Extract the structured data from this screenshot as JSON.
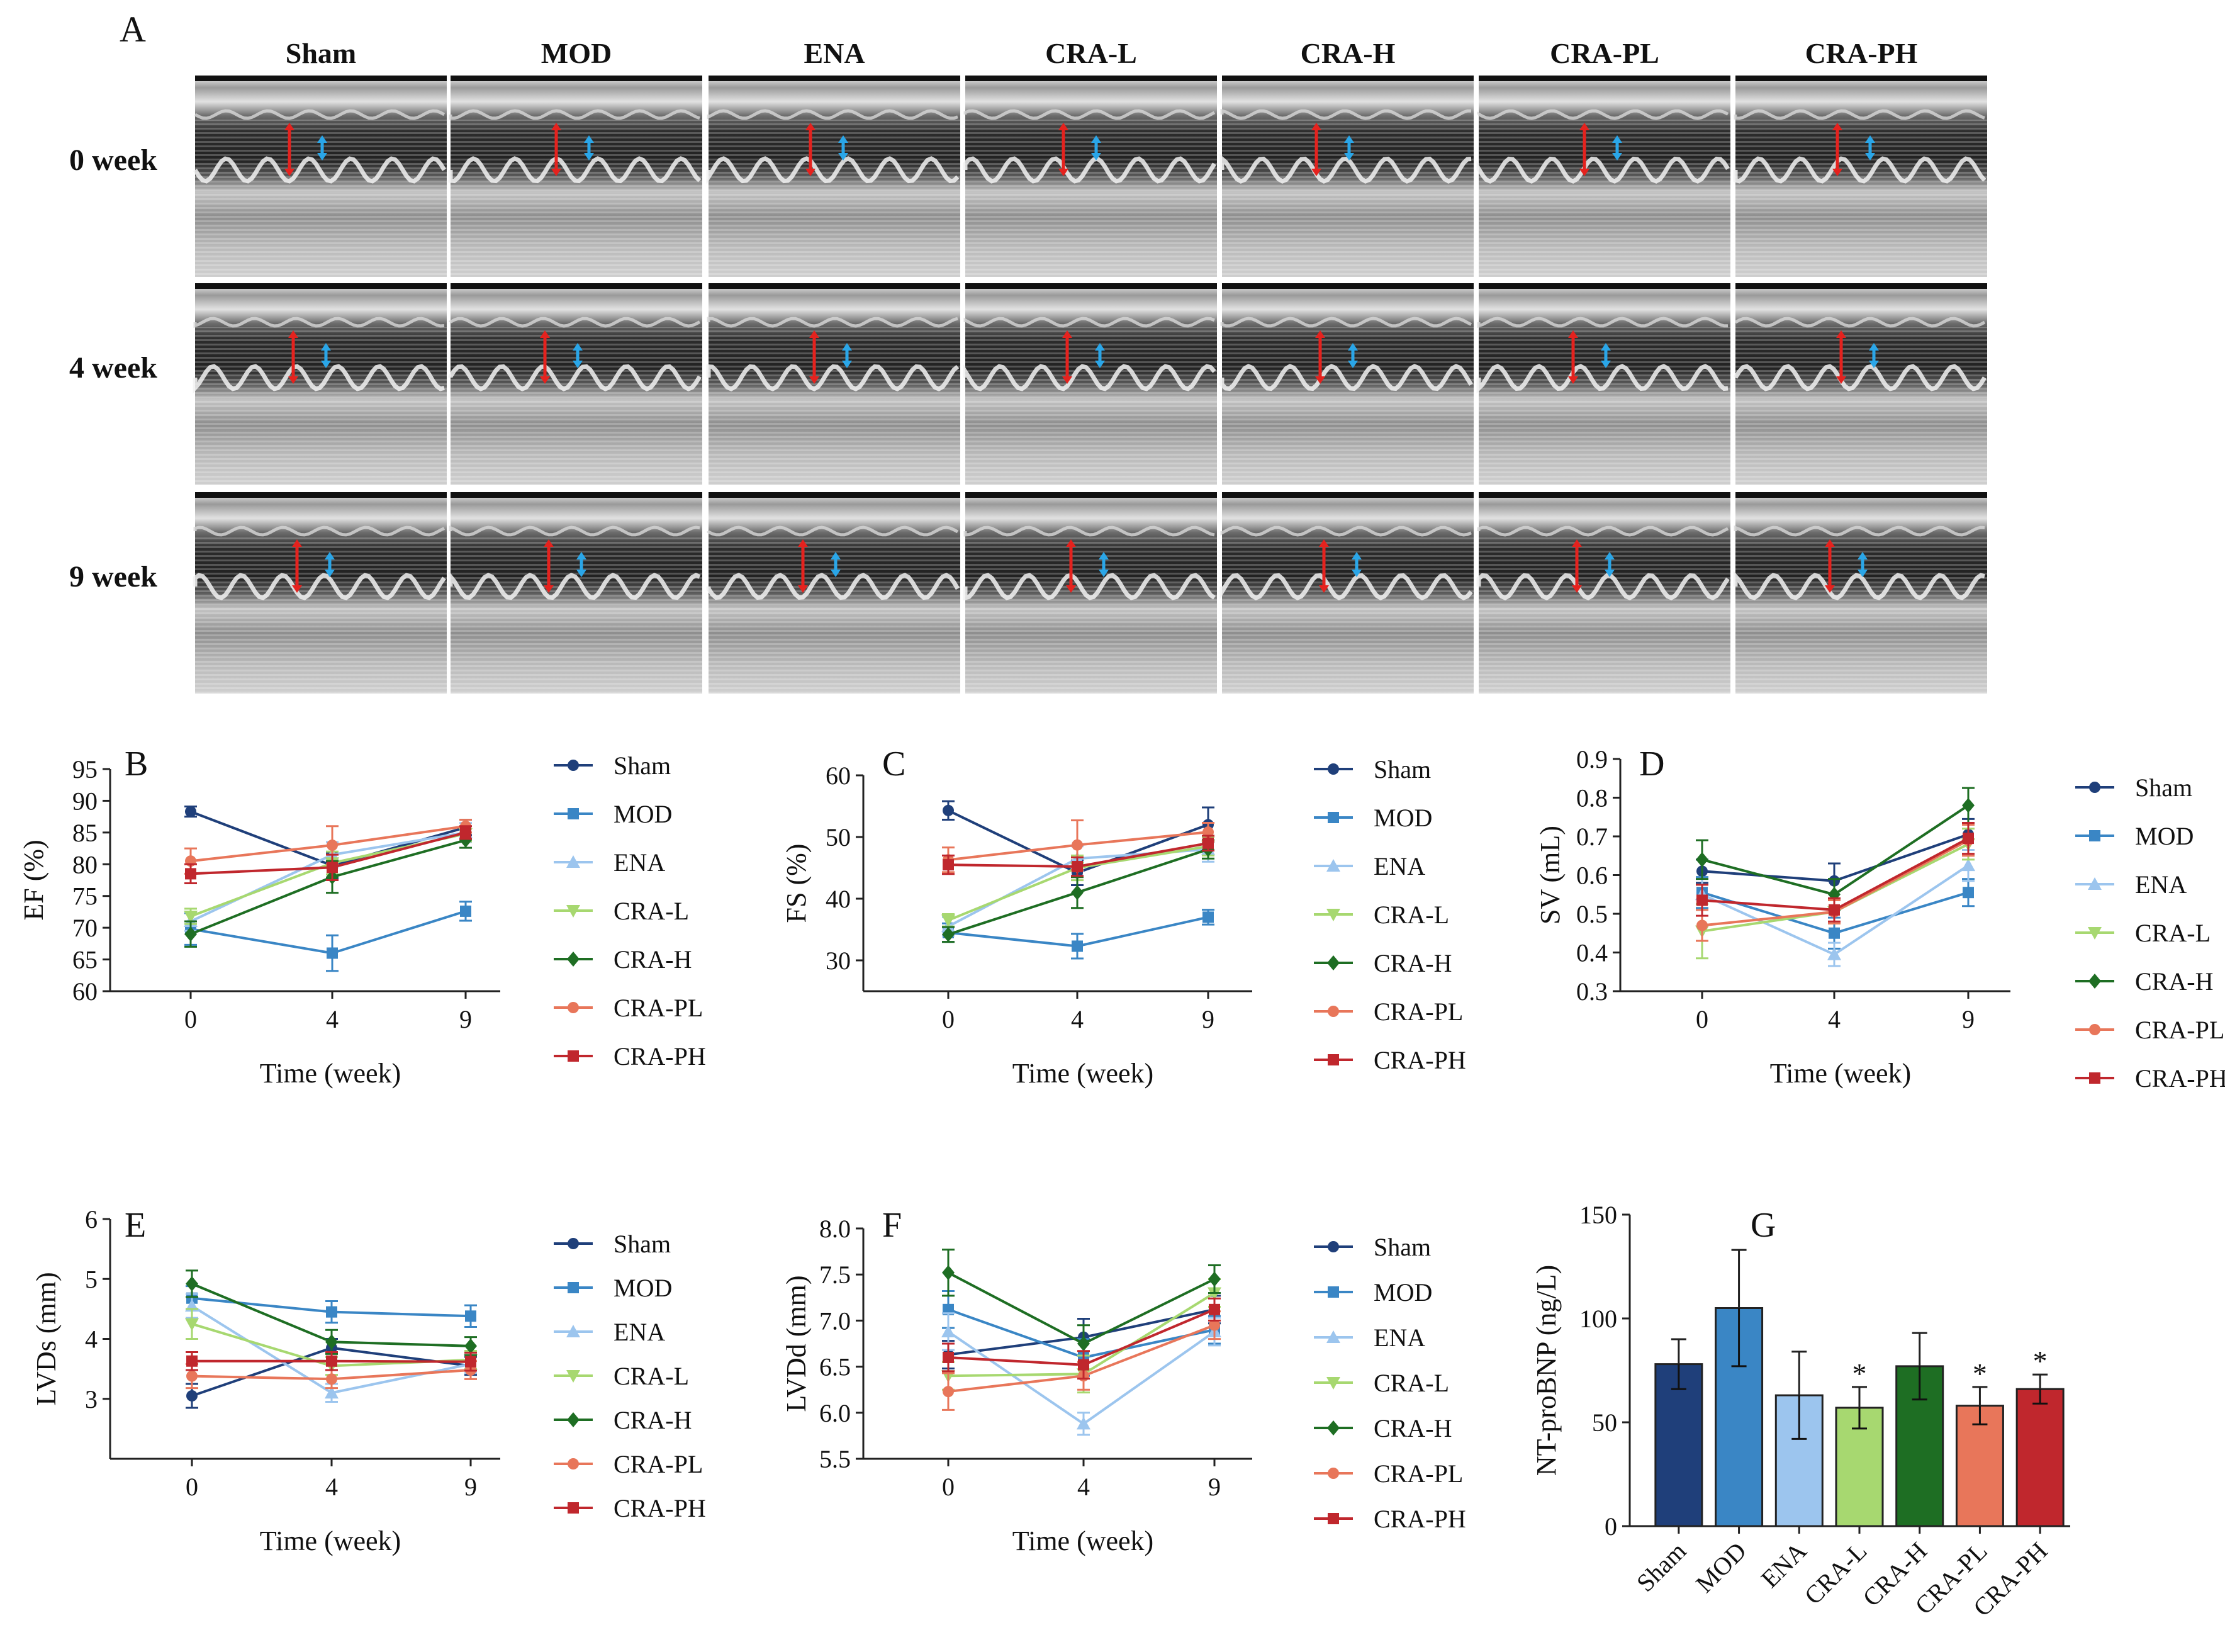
{
  "figure": {
    "panel_letters": [
      "A",
      "B",
      "C",
      "D",
      "E",
      "F",
      "G"
    ],
    "group_labels": [
      "Sham",
      "MOD",
      "ENA",
      "CRA-L",
      "CRA-H",
      "CRA-PL",
      "CRA-PH"
    ],
    "row_labels": [
      "0 week",
      "4 week",
      "9 week"
    ],
    "colors": {
      "Sham": "#1f3f7a",
      "MOD": "#3a86c5",
      "ENA": "#9cc5ee",
      "CRA-L": "#a7d870",
      "CRA-H": "#1e6e23",
      "CRA-PL": "#e8765a",
      "CRA-PH": "#c0272d",
      "arrow_red": "#e5221e",
      "arrow_blue": "#2aa6e8"
    }
  },
  "chart_data": [
    {
      "panel": "B",
      "type": "line",
      "xlabel": "Time (week)",
      "ylabel": "EF (%)",
      "x": [
        0,
        4,
        9
      ],
      "ylim": [
        60,
        95
      ],
      "yticks": [
        60,
        65,
        70,
        75,
        80,
        85,
        90,
        95
      ],
      "series": [
        {
          "name": "Sham",
          "marker": "circle",
          "values": [
            88.3,
            79.8,
            85.8
          ],
          "errors": [
            0.8,
            2.0,
            1.2
          ]
        },
        {
          "name": "MOD",
          "marker": "square",
          "values": [
            69.8,
            66.0,
            72.6
          ],
          "errors": [
            2.5,
            2.8,
            1.5
          ]
        },
        {
          "name": "ENA",
          "marker": "triangle-up",
          "values": [
            71.0,
            81.5,
            85.0
          ],
          "errors": [
            1.5,
            2.0,
            1.5
          ]
        },
        {
          "name": "CRA-L",
          "marker": "triangle-down",
          "values": [
            71.8,
            80.2,
            84.8
          ],
          "errors": [
            1.2,
            1.8,
            1.2
          ]
        },
        {
          "name": "CRA-H",
          "marker": "diamond",
          "values": [
            69.0,
            78.0,
            83.8
          ],
          "errors": [
            2.0,
            2.5,
            1.2
          ]
        },
        {
          "name": "CRA-PL",
          "marker": "circle",
          "values": [
            80.5,
            83.0,
            86.0
          ],
          "errors": [
            2.0,
            3.0,
            1.0
          ]
        },
        {
          "name": "CRA-PH",
          "marker": "square",
          "values": [
            78.5,
            79.5,
            85.0
          ],
          "errors": [
            1.5,
            2.0,
            1.0
          ]
        }
      ]
    },
    {
      "panel": "C",
      "type": "line",
      "xlabel": "Time (week)",
      "ylabel": "FS (%)",
      "x": [
        0,
        4,
        9
      ],
      "ylim": [
        25,
        60
      ],
      "yticks": [
        30,
        40,
        50,
        60
      ],
      "series": [
        {
          "name": "Sham",
          "marker": "circle",
          "values": [
            54.3,
            44.2,
            52.0
          ],
          "errors": [
            1.5,
            2.0,
            2.8
          ]
        },
        {
          "name": "MOD",
          "marker": "square",
          "values": [
            34.5,
            32.3,
            37.0
          ],
          "errors": [
            1.5,
            2.0,
            1.2
          ]
        },
        {
          "name": "ENA",
          "marker": "triangle-up",
          "values": [
            35.5,
            46.5,
            48.0
          ],
          "errors": [
            1.5,
            2.0,
            2.0
          ]
        },
        {
          "name": "CRA-L",
          "marker": "triangle-down",
          "values": [
            36.5,
            45.0,
            48.5
          ],
          "errors": [
            1.0,
            2.0,
            1.5
          ]
        },
        {
          "name": "CRA-H",
          "marker": "diamond",
          "values": [
            34.2,
            41.0,
            48.0
          ],
          "errors": [
            1.2,
            2.5,
            1.5
          ]
        },
        {
          "name": "CRA-PL",
          "marker": "circle",
          "values": [
            46.3,
            48.7,
            50.8
          ],
          "errors": [
            2.0,
            4.0,
            1.5
          ]
        },
        {
          "name": "CRA-PH",
          "marker": "square",
          "values": [
            45.5,
            45.2,
            49.0
          ],
          "errors": [
            1.5,
            1.5,
            1.2
          ]
        }
      ]
    },
    {
      "panel": "D",
      "type": "line",
      "xlabel": "Time (week)",
      "ylabel": "SV (mL)",
      "x": [
        0,
        4,
        9
      ],
      "ylim": [
        0.3,
        0.9
      ],
      "yticks": [
        0.3,
        0.4,
        0.5,
        0.6,
        0.7,
        0.8,
        0.9
      ],
      "series": [
        {
          "name": "Sham",
          "marker": "circle",
          "values": [
            0.61,
            0.585,
            0.705
          ],
          "errors": [
            0.03,
            0.045,
            0.04
          ]
        },
        {
          "name": "MOD",
          "marker": "square",
          "values": [
            0.555,
            0.45,
            0.555
          ],
          "errors": [
            0.04,
            0.04,
            0.035
          ]
        },
        {
          "name": "ENA",
          "marker": "triangle-up",
          "values": [
            0.55,
            0.395,
            0.625
          ],
          "errors": [
            0.04,
            0.03,
            0.04
          ]
        },
        {
          "name": "CRA-L",
          "marker": "triangle-down",
          "values": [
            0.455,
            0.505,
            0.68
          ],
          "errors": [
            0.07,
            0.03,
            0.04
          ]
        },
        {
          "name": "CRA-H",
          "marker": "diamond",
          "values": [
            0.64,
            0.55,
            0.78
          ],
          "errors": [
            0.05,
            0.04,
            0.045
          ]
        },
        {
          "name": "CRA-PL",
          "marker": "circle",
          "values": [
            0.47,
            0.505,
            0.69
          ],
          "errors": [
            0.04,
            0.03,
            0.04
          ]
        },
        {
          "name": "CRA-PH",
          "marker": "square",
          "values": [
            0.535,
            0.51,
            0.695
          ],
          "errors": [
            0.04,
            0.03,
            0.04
          ]
        }
      ]
    },
    {
      "panel": "E",
      "type": "line",
      "xlabel": "Time (week)",
      "ylabel": "LVDs (mm)",
      "x": [
        0,
        4,
        9
      ],
      "ylim": [
        2,
        6
      ],
      "yticks": [
        3,
        4,
        5,
        6
      ],
      "series": [
        {
          "name": "Sham",
          "marker": "circle",
          "values": [
            3.05,
            3.85,
            3.55
          ],
          "errors": [
            0.2,
            0.15,
            0.15
          ]
        },
        {
          "name": "MOD",
          "marker": "square",
          "values": [
            4.68,
            4.45,
            4.38
          ],
          "errors": [
            0.2,
            0.18,
            0.18
          ]
        },
        {
          "name": "ENA",
          "marker": "triangle-up",
          "values": [
            4.55,
            3.1,
            3.58
          ],
          "errors": [
            0.2,
            0.15,
            0.15
          ]
        },
        {
          "name": "CRA-L",
          "marker": "triangle-down",
          "values": [
            4.25,
            3.55,
            3.65
          ],
          "errors": [
            0.25,
            0.15,
            0.15
          ]
        },
        {
          "name": "CRA-H",
          "marker": "diamond",
          "values": [
            4.92,
            3.95,
            3.88
          ],
          "errors": [
            0.22,
            0.2,
            0.15
          ]
        },
        {
          "name": "CRA-PL",
          "marker": "circle",
          "values": [
            3.38,
            3.33,
            3.48
          ],
          "errors": [
            0.2,
            0.15,
            0.15
          ]
        },
        {
          "name": "CRA-PH",
          "marker": "square",
          "values": [
            3.63,
            3.63,
            3.62
          ],
          "errors": [
            0.15,
            0.15,
            0.15
          ]
        }
      ]
    },
    {
      "panel": "F",
      "type": "line",
      "xlabel": "Time (week)",
      "ylabel": "LVDd (mm)",
      "x": [
        0,
        4,
        9
      ],
      "ylim": [
        5.5,
        8.0
      ],
      "yticks": [
        5.5,
        6.0,
        6.5,
        7.0,
        7.5,
        8.0
      ],
      "series": [
        {
          "name": "Sham",
          "marker": "circle",
          "values": [
            6.63,
            6.82,
            7.12
          ],
          "errors": [
            0.15,
            0.2,
            0.15
          ]
        },
        {
          "name": "MOD",
          "marker": "square",
          "values": [
            7.12,
            6.6,
            6.9
          ],
          "errors": [
            0.2,
            0.2,
            0.15
          ]
        },
        {
          "name": "ENA",
          "marker": "triangle-up",
          "values": [
            6.88,
            5.88,
            6.88
          ],
          "errors": [
            0.2,
            0.12,
            0.15
          ]
        },
        {
          "name": "CRA-L",
          "marker": "triangle-down",
          "values": [
            6.4,
            6.42,
            7.3
          ],
          "errors": [
            0.15,
            0.2,
            0.15
          ]
        },
        {
          "name": "CRA-H",
          "marker": "diamond",
          "values": [
            7.52,
            6.75,
            7.45
          ],
          "errors": [
            0.25,
            0.2,
            0.15
          ]
        },
        {
          "name": "CRA-PL",
          "marker": "circle",
          "values": [
            6.23,
            6.4,
            6.95
          ],
          "errors": [
            0.2,
            0.15,
            0.15
          ]
        },
        {
          "name": "CRA-PH",
          "marker": "square",
          "values": [
            6.6,
            6.52,
            7.12
          ],
          "errors": [
            0.15,
            0.15,
            0.12
          ]
        }
      ]
    },
    {
      "panel": "G",
      "type": "bar",
      "ylabel": "NT-proBNP (ng/L)",
      "categories": [
        "Sham",
        "MOD",
        "ENA",
        "CRA-L",
        "CRA-H",
        "CRA-PL",
        "CRA-PH"
      ],
      "values": [
        78,
        105,
        63,
        57,
        77,
        58,
        66
      ],
      "errors": [
        12,
        28,
        21,
        10,
        16,
        9,
        7
      ],
      "significance": [
        "",
        "",
        "",
        "*",
        "",
        "*",
        "*"
      ],
      "ylim": [
        0,
        150
      ],
      "yticks": [
        0,
        50,
        100,
        150
      ]
    }
  ]
}
